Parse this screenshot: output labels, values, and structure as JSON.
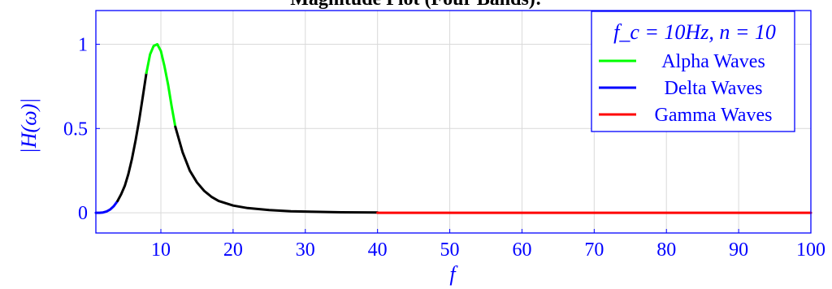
{
  "chart_data": {
    "type": "line",
    "title": "Magnitude Plot (Four Bands):",
    "xlabel": "f",
    "ylabel": "|H(ω)|",
    "xlim": [
      1,
      100
    ],
    "ylim": [
      -0.12,
      1.2
    ],
    "xticks": [
      10,
      20,
      30,
      40,
      50,
      60,
      70,
      80,
      90,
      100
    ],
    "yticks": [
      0,
      0.5,
      1
    ],
    "ytick_labels": [
      "0",
      "0.5",
      "1"
    ],
    "grid": true,
    "legend": {
      "placement": "top-right",
      "title": "f_c = 10Hz, n = 10",
      "entries": [
        {
          "name": "Alpha Waves",
          "color": "#00ff00"
        },
        {
          "name": "Delta Waves",
          "color": "#0000ff"
        },
        {
          "name": "Gamma Waves",
          "color": "#ff0000"
        }
      ]
    },
    "series": [
      {
        "name": "Delta Waves",
        "color": "#0000ff",
        "x": [
          1,
          1.5,
          2,
          2.5,
          3,
          3.5,
          4
        ],
        "y": [
          0.0,
          0.0,
          0.002,
          0.008,
          0.02,
          0.04,
          0.07
        ]
      },
      {
        "name": "",
        "color": "#000000",
        "x": [
          4,
          4.5,
          5,
          5.5,
          6,
          6.5,
          7,
          7.5,
          8
        ],
        "y": [
          0.07,
          0.11,
          0.16,
          0.23,
          0.32,
          0.43,
          0.55,
          0.69,
          0.83
        ]
      },
      {
        "name": "Alpha Waves",
        "color": "#00ff00",
        "x": [
          8,
          8.5,
          9,
          9.5,
          10,
          10.5,
          11,
          11.5,
          12
        ],
        "y": [
          0.83,
          0.94,
          0.99,
          1.0,
          0.96,
          0.87,
          0.76,
          0.63,
          0.51
        ]
      },
      {
        "name": "",
        "color": "#000000",
        "x": [
          12,
          13,
          14,
          15,
          16,
          17,
          18,
          20,
          22,
          25,
          28,
          30,
          35,
          40
        ],
        "y": [
          0.51,
          0.36,
          0.25,
          0.18,
          0.13,
          0.095,
          0.07,
          0.043,
          0.028,
          0.016,
          0.009,
          0.007,
          0.003,
          0.0015
        ]
      },
      {
        "name": "Gamma Waves",
        "color": "#ff0000",
        "x": [
          40,
          100
        ],
        "y": [
          0.0,
          0.0
        ]
      }
    ]
  },
  "axis_color": "#0000ff",
  "grid_color": "#d9d9d9"
}
